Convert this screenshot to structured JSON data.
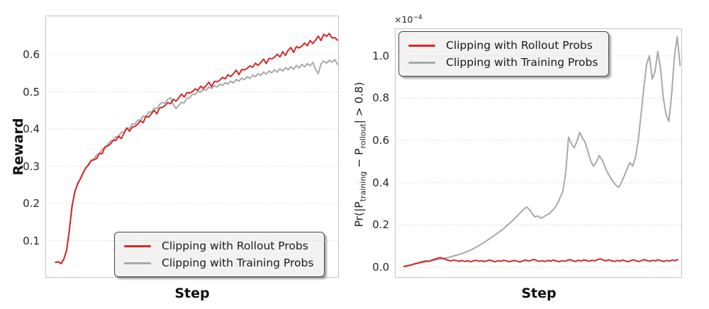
{
  "figure": {
    "description": "Two-panel line chart comparing clipping with rollout probs vs training probs",
    "legend_items": [
      "Clipping with Rollout Probs",
      "Clipping with Training Probs"
    ]
  },
  "colors": {
    "rollout_red": "#d62728",
    "training_gray": "#a9a9a9",
    "grid": "#d8d8d8",
    "spine": "#c4c4c4",
    "tick_text": "#262626",
    "legend_bg": "#f2f2f2",
    "legend_border": "#454545"
  },
  "chart_data": [
    {
      "type": "line",
      "title": "",
      "xlabel": "Step",
      "ylabel": "Reward",
      "x_tick_labels": "none shown",
      "ylim": [
        0.0,
        0.705
      ],
      "yticks": [
        0.1,
        0.2,
        0.3,
        0.4,
        0.5,
        0.6
      ],
      "grid": "horizontal dotted",
      "legend_position": "lower right",
      "series": [
        {
          "name": "Clipping with Rollout Probs",
          "color": "#d62728",
          "x_frac_range": [
            0.035,
            0.995
          ],
          "y": [
            0.042,
            0.043,
            0.038,
            0.051,
            0.073,
            0.128,
            0.193,
            0.23,
            0.253,
            0.265,
            0.281,
            0.296,
            0.303,
            0.316,
            0.317,
            0.321,
            0.335,
            0.333,
            0.352,
            0.354,
            0.36,
            0.369,
            0.369,
            0.381,
            0.374,
            0.389,
            0.403,
            0.394,
            0.405,
            0.407,
            0.413,
            0.422,
            0.417,
            0.434,
            0.432,
            0.441,
            0.45,
            0.441,
            0.457,
            0.458,
            0.463,
            0.471,
            0.468,
            0.48,
            0.475,
            0.484,
            0.494,
            0.486,
            0.498,
            0.497,
            0.501,
            0.508,
            0.504,
            0.515,
            0.509,
            0.517,
            0.526,
            0.514,
            0.528,
            0.527,
            0.531,
            0.539,
            0.535,
            0.546,
            0.541,
            0.549,
            0.558,
            0.546,
            0.56,
            0.559,
            0.563,
            0.57,
            0.566,
            0.577,
            0.571,
            0.579,
            0.588,
            0.576,
            0.59,
            0.589,
            0.593,
            0.601,
            0.594,
            0.608,
            0.598,
            0.612,
            0.619,
            0.606,
            0.622,
            0.618,
            0.623,
            0.631,
            0.624,
            0.638,
            0.63,
            0.639,
            0.65,
            0.638,
            0.655,
            0.649,
            0.657,
            0.645,
            0.646,
            0.639
          ]
        },
        {
          "name": "Clipping with Training Probs",
          "color": "#a9a9a9",
          "x_frac_range": [
            0.035,
            0.995
          ],
          "y": [
            0.041,
            0.042,
            0.04,
            0.049,
            0.074,
            0.126,
            0.19,
            0.233,
            0.25,
            0.267,
            0.283,
            0.294,
            0.306,
            0.314,
            0.32,
            0.331,
            0.333,
            0.346,
            0.349,
            0.358,
            0.368,
            0.37,
            0.379,
            0.38,
            0.392,
            0.391,
            0.403,
            0.402,
            0.414,
            0.413,
            0.424,
            0.424,
            0.435,
            0.433,
            0.446,
            0.445,
            0.456,
            0.455,
            0.466,
            0.472,
            0.469,
            0.48,
            0.484,
            0.466,
            0.455,
            0.463,
            0.472,
            0.47,
            0.483,
            0.484,
            0.494,
            0.493,
            0.501,
            0.499,
            0.507,
            0.504,
            0.513,
            0.509,
            0.517,
            0.513,
            0.521,
            0.517,
            0.525,
            0.521,
            0.529,
            0.524,
            0.533,
            0.529,
            0.537,
            0.533,
            0.541,
            0.536,
            0.545,
            0.541,
            0.549,
            0.544,
            0.553,
            0.548,
            0.556,
            0.551,
            0.559,
            0.553,
            0.562,
            0.556,
            0.565,
            0.559,
            0.568,
            0.561,
            0.571,
            0.564,
            0.574,
            0.567,
            0.576,
            0.57,
            0.579,
            0.56,
            0.549,
            0.575,
            0.583,
            0.577,
            0.585,
            0.58,
            0.587,
            0.574
          ]
        }
      ]
    },
    {
      "type": "line",
      "title": "",
      "xlabel": "Step",
      "ylabel": "Pr(|P_training − P_rollout| > 0.8)",
      "ylabel_parts": {
        "p1": "Pr(|P",
        "sub1": "training",
        "p2": " − P",
        "sub2": "rollout",
        "p3": "| > 0.8)"
      },
      "y_offset_parts": {
        "base": "×10",
        "exp": "−4"
      },
      "y_scale": "×10⁻⁴",
      "x_tick_labels": "none shown",
      "ylim": [
        -0.05,
        1.13
      ],
      "yticks": [
        0.0,
        0.2,
        0.4,
        0.6,
        0.8,
        1.0
      ],
      "grid": "horizontal dotted",
      "legend_position": "upper left",
      "series": [
        {
          "name": "Clipping with Rollout Probs",
          "color": "#d62728",
          "x_frac_range": [
            0.032,
            0.985
          ],
          "y": [
            0.003,
            0.006,
            0.009,
            0.013,
            0.017,
            0.02,
            0.024,
            0.027,
            0.03,
            0.028,
            0.033,
            0.038,
            0.042,
            0.046,
            0.042,
            0.037,
            0.033,
            0.03,
            0.034,
            0.031,
            0.028,
            0.032,
            0.027,
            0.031,
            0.026,
            0.03,
            0.033,
            0.028,
            0.031,
            0.027,
            0.03,
            0.034,
            0.029,
            0.026,
            0.031,
            0.028,
            0.033,
            0.03,
            0.026,
            0.029,
            0.032,
            0.028,
            0.025,
            0.03,
            0.034,
            0.029,
            0.033,
            0.037,
            0.031,
            0.028,
            0.031,
            0.027,
            0.032,
            0.029,
            0.034,
            0.03,
            0.026,
            0.031,
            0.028,
            0.032,
            0.036,
            0.031,
            0.027,
            0.033,
            0.029,
            0.035,
            0.032,
            0.028,
            0.033,
            0.03,
            0.036,
            0.04,
            0.034,
            0.03,
            0.035,
            0.031,
            0.027,
            0.032,
            0.029,
            0.034,
            0.03,
            0.026,
            0.031,
            0.035,
            0.03,
            0.027,
            0.032,
            0.036,
            0.031,
            0.028,
            0.033,
            0.03,
            0.035,
            0.031,
            0.027,
            0.032,
            0.029,
            0.034,
            0.031,
            0.036
          ]
        },
        {
          "name": "Clipping with Training Probs",
          "color": "#a9a9a9",
          "x_frac_range": [
            0.032,
            0.993
          ],
          "y": [
            0.005,
            0.008,
            0.01,
            0.013,
            0.016,
            0.018,
            0.021,
            0.024,
            0.026,
            0.028,
            0.031,
            0.033,
            0.036,
            0.038,
            0.041,
            0.044,
            0.047,
            0.05,
            0.054,
            0.058,
            0.062,
            0.066,
            0.071,
            0.076,
            0.082,
            0.089,
            0.096,
            0.104,
            0.112,
            0.12,
            0.129,
            0.138,
            0.147,
            0.156,
            0.166,
            0.175,
            0.186,
            0.198,
            0.21,
            0.222,
            0.235,
            0.248,
            0.262,
            0.275,
            0.285,
            0.272,
            0.252,
            0.238,
            0.243,
            0.232,
            0.238,
            0.246,
            0.252,
            0.266,
            0.28,
            0.3,
            0.33,
            0.36,
            0.45,
            0.615,
            0.585,
            0.565,
            0.595,
            0.638,
            0.61,
            0.59,
            0.545,
            0.5,
            0.478,
            0.498,
            0.528,
            0.508,
            0.478,
            0.448,
            0.425,
            0.405,
            0.388,
            0.378,
            0.402,
            0.432,
            0.465,
            0.495,
            0.478,
            0.52,
            0.6,
            0.72,
            0.85,
            0.96,
            1.0,
            0.89,
            0.925,
            1.02,
            0.94,
            0.8,
            0.72,
            0.69,
            0.82,
            1.0,
            1.09,
            0.955
          ]
        }
      ]
    }
  ]
}
